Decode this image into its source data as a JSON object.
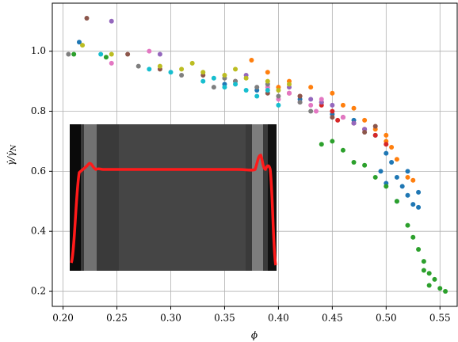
{
  "chart_data": {
    "type": "scatter",
    "xlabel": "ϕ",
    "ylabel": "γ̇/γ̇",
    "ylabel_sub": "N",
    "xlim": [
      0.19,
      0.566
    ],
    "ylim": [
      0.15,
      1.16
    ],
    "grid": true,
    "xticks": [
      {
        "value": 0.2,
        "label": "0.20"
      },
      {
        "value": 0.25,
        "label": "0.25"
      },
      {
        "value": 0.3,
        "label": "0.30"
      },
      {
        "value": 0.35,
        "label": "0.35"
      },
      {
        "value": 0.4,
        "label": "0.40"
      },
      {
        "value": 0.45,
        "label": "0.45"
      },
      {
        "value": 0.5,
        "label": "0.50"
      },
      {
        "value": 0.55,
        "label": "0.55"
      }
    ],
    "yticks": [
      0.2,
      0.4,
      0.6,
      0.8,
      {
        "value": 1.0,
        "label": "1.0"
      }
    ],
    "series": [
      {
        "color": "#1f77b4",
        "x": [
          0.215,
          0.35,
          0.38,
          0.42,
          0.45,
          0.47,
          0.49,
          0.5,
          0.505,
          0.51,
          0.515,
          0.52,
          0.525,
          0.53,
          0.52,
          0.51,
          0.5,
          0.495,
          0.53
        ],
        "values": [
          1.03,
          0.89,
          0.87,
          0.84,
          0.79,
          0.77,
          0.72,
          0.66,
          0.63,
          0.58,
          0.55,
          0.52,
          0.49,
          0.48,
          0.6,
          0.5,
          0.56,
          0.6,
          0.53
        ]
      },
      {
        "color": "#ff7f0e",
        "x": [
          0.375,
          0.39,
          0.41,
          0.43,
          0.45,
          0.46,
          0.47,
          0.48,
          0.49,
          0.5,
          0.505,
          0.51,
          0.52,
          0.525,
          0.4,
          0.44,
          0.5
        ],
        "values": [
          0.97,
          0.93,
          0.9,
          0.88,
          0.86,
          0.82,
          0.81,
          0.77,
          0.74,
          0.7,
          0.68,
          0.64,
          0.58,
          0.57,
          0.88,
          0.83,
          0.72
        ]
      },
      {
        "color": "#2ca02c",
        "x": [
          0.21,
          0.24,
          0.44,
          0.45,
          0.46,
          0.47,
          0.48,
          0.49,
          0.5,
          0.51,
          0.52,
          0.525,
          0.53,
          0.535,
          0.54,
          0.545,
          0.55,
          0.555,
          0.535,
          0.54
        ],
        "values": [
          0.99,
          0.98,
          0.69,
          0.7,
          0.67,
          0.63,
          0.62,
          0.58,
          0.55,
          0.5,
          0.42,
          0.38,
          0.34,
          0.3,
          0.26,
          0.24,
          0.21,
          0.2,
          0.27,
          0.22
        ]
      },
      {
        "color": "#d62728",
        "x": [
          0.42,
          0.44,
          0.45,
          0.46,
          0.47,
          0.48,
          0.49,
          0.5,
          0.455,
          0.41
        ],
        "values": [
          0.85,
          0.82,
          0.8,
          0.78,
          0.76,
          0.74,
          0.72,
          0.69,
          0.77,
          0.86
        ]
      },
      {
        "color": "#9467bd",
        "x": [
          0.245,
          0.29,
          0.41,
          0.43,
          0.44,
          0.45,
          0.46,
          0.47,
          0.48,
          0.37
        ],
        "values": [
          1.1,
          0.99,
          0.88,
          0.84,
          0.83,
          0.82,
          0.78,
          0.76,
          0.74,
          0.92
        ]
      },
      {
        "color": "#8c564b",
        "x": [
          0.222,
          0.26,
          0.29,
          0.33,
          0.36,
          0.39,
          0.42,
          0.45,
          0.48,
          0.49
        ],
        "values": [
          1.11,
          0.99,
          0.94,
          0.92,
          0.9,
          0.86,
          0.85,
          0.78,
          0.73,
          0.75
        ]
      },
      {
        "color": "#e377c2",
        "x": [
          0.28,
          0.245,
          0.39,
          0.4,
          0.42,
          0.43,
          0.44,
          0.435,
          0.41,
          0.46
        ],
        "values": [
          1.0,
          0.96,
          0.88,
          0.84,
          0.83,
          0.82,
          0.84,
          0.8,
          0.86,
          0.78
        ]
      },
      {
        "color": "#7f7f7f",
        "x": [
          0.205,
          0.27,
          0.31,
          0.34,
          0.36,
          0.38,
          0.4,
          0.42,
          0.43,
          0.35,
          0.39
        ],
        "values": [
          0.99,
          0.95,
          0.92,
          0.88,
          0.9,
          0.88,
          0.85,
          0.83,
          0.8,
          0.91,
          0.89
        ]
      },
      {
        "color": "#bcbd22",
        "x": [
          0.218,
          0.245,
          0.29,
          0.31,
          0.33,
          0.35,
          0.37,
          0.39,
          0.41,
          0.32,
          0.36,
          0.4
        ],
        "values": [
          1.02,
          0.99,
          0.95,
          0.94,
          0.93,
          0.92,
          0.91,
          0.9,
          0.89,
          0.96,
          0.94,
          0.87
        ]
      },
      {
        "color": "#17becf",
        "x": [
          0.235,
          0.28,
          0.3,
          0.33,
          0.35,
          0.37,
          0.38,
          0.4,
          0.36,
          0.39,
          0.34
        ],
        "values": [
          0.99,
          0.94,
          0.93,
          0.9,
          0.88,
          0.87,
          0.85,
          0.82,
          0.89,
          0.87,
          0.91
        ]
      }
    ]
  }
}
